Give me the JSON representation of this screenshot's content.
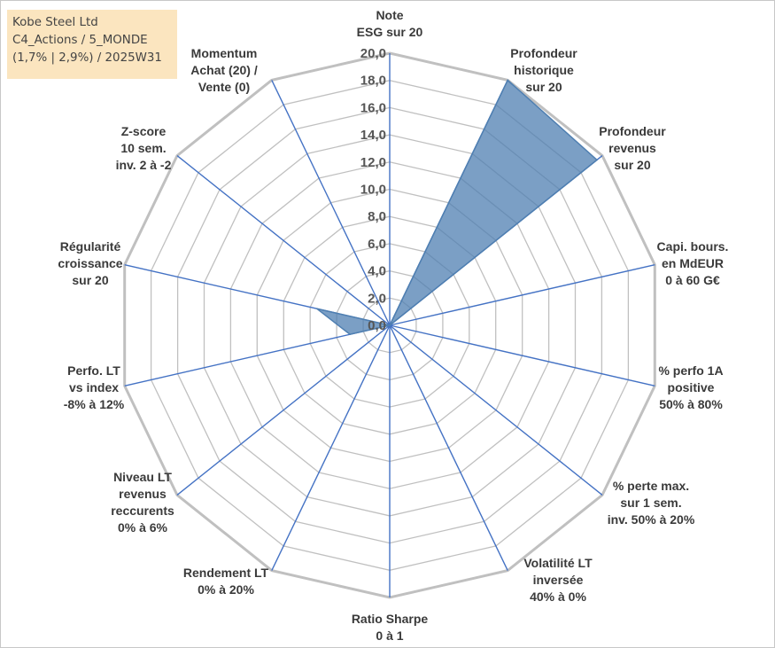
{
  "title_box": {
    "line1": "Kobe Steel Ltd",
    "line2": "C4_Actions / 5_MONDE",
    "line3": "(1,7% | 2,9%) / 2025W31"
  },
  "chart_data": {
    "type": "radar",
    "rmax": 20,
    "ticks": [
      "0,0",
      "2,0",
      "4,0",
      "6,0",
      "8,0",
      "10,0",
      "12,0",
      "14,0",
      "16,0",
      "18,0",
      "20,0"
    ],
    "axes": [
      {
        "lines": [
          "Note",
          "ESG sur 20"
        ]
      },
      {
        "lines": [
          "Profondeur",
          "historique",
          "sur 20"
        ]
      },
      {
        "lines": [
          "Profondeur",
          "revenus",
          "sur 20"
        ]
      },
      {
        "lines": [
          "Capi. bours.",
          "en MdEUR",
          "0 à 60 G€"
        ]
      },
      {
        "lines": [
          "% perfo 1A",
          "positive",
          "50% à 80%"
        ]
      },
      {
        "lines": [
          "% perte max.",
          "sur 1 sem.",
          "inv. 50% à 20%"
        ]
      },
      {
        "lines": [
          "Volatilité LT",
          "inversée",
          "40% à 0%"
        ]
      },
      {
        "lines": [
          "Ratio Sharpe",
          "0 à 1"
        ]
      },
      {
        "lines": [
          "Rendement LT",
          "0% à 20%"
        ]
      },
      {
        "lines": [
          "Niveau LT",
          "revenus",
          "reccurents",
          "0% à 6%"
        ]
      },
      {
        "lines": [
          "Perfo. LT",
          "vs index",
          "-8% à 12%"
        ]
      },
      {
        "lines": [
          "Régularité",
          "croissance",
          "sur 20"
        ]
      },
      {
        "lines": [
          "Z-score",
          "10 sem.",
          "inv. 2 à -2"
        ]
      },
      {
        "lines": [
          "Momentum",
          "Achat (20) /",
          "Vente (0)"
        ]
      }
    ],
    "series": [
      {
        "values": [
          0,
          20,
          19.5,
          0,
          0,
          0,
          0,
          0,
          0,
          0,
          3,
          5.5,
          0,
          0
        ],
        "color": "#4f7fb1"
      }
    ],
    "grid_color": "#c0c0c0",
    "spoke_color": "#4472c4"
  }
}
